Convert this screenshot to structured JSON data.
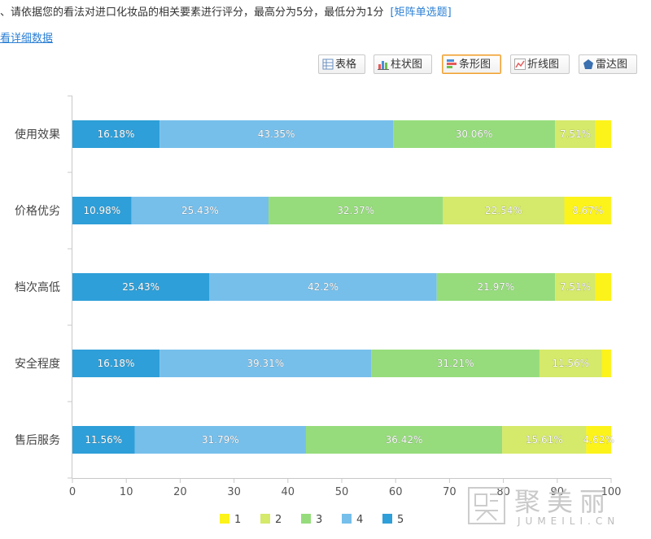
{
  "question": {
    "text": "、请依据您的看法对进口化妆品的相关要素进行评分，最高分为5分，最低分为1分",
    "tag": "[矩阵单选题]"
  },
  "detail_link": "看详细数据",
  "toolbar": {
    "buttons": [
      {
        "label": "表格",
        "icon": "table-icon",
        "active": false
      },
      {
        "label": "柱状图",
        "icon": "column-chart-icon",
        "active": false
      },
      {
        "label": "条形图",
        "icon": "bar-chart-icon",
        "active": true
      },
      {
        "label": "折线图",
        "icon": "line-chart-icon",
        "active": false
      },
      {
        "label": "雷达图",
        "icon": "radar-chart-icon",
        "active": false
      }
    ]
  },
  "watermark": {
    "cn": "聚美丽",
    "en": "JUMEILI.CN"
  },
  "chart_data": {
    "type": "bar",
    "orientation": "horizontal",
    "stacked": true,
    "categories": [
      "使用效果",
      "价格优劣",
      "档次高低",
      "安全程度",
      "售后服务"
    ],
    "series": [
      {
        "name": "5",
        "color": "#2e9fd8",
        "values": [
          16.18,
          10.98,
          25.43,
          16.18,
          11.56
        ],
        "labels": [
          "16.18%",
          "10.98%",
          "25.43%",
          "16.18%",
          "11.56%"
        ]
      },
      {
        "name": "4",
        "color": "#76bfeb",
        "values": [
          43.35,
          25.43,
          42.2,
          39.31,
          31.79
        ],
        "labels": [
          "43.35%",
          "25.43%",
          "42.2%",
          "39.31%",
          "31.79%"
        ]
      },
      {
        "name": "3",
        "color": "#96dc7c",
        "values": [
          30.06,
          32.37,
          21.97,
          31.21,
          36.42
        ],
        "labels": [
          "30.06%",
          "32.37%",
          "21.97%",
          "31.21%",
          "36.42%"
        ]
      },
      {
        "name": "2",
        "color": "#d5e96a",
        "values": [
          7.51,
          22.54,
          7.51,
          11.56,
          15.61
        ],
        "labels": [
          "7.51%",
          "22.54%",
          "7.51%",
          "11.56%",
          "15.61%"
        ]
      },
      {
        "name": "1",
        "color": "#fcf31a",
        "values": [
          2.9,
          8.67,
          2.9,
          1.73,
          4.62
        ],
        "labels": [
          "",
          "8.67%",
          "",
          "",
          "4.62%"
        ]
      }
    ],
    "xlim": [
      0,
      100
    ],
    "xticks": [
      "0",
      "10",
      "20",
      "30",
      "40",
      "50",
      "60",
      "70",
      "80",
      "90",
      "100"
    ],
    "legend": {
      "position": "bottom",
      "order": [
        "1",
        "2",
        "3",
        "4",
        "5"
      ]
    },
    "grid": false
  }
}
